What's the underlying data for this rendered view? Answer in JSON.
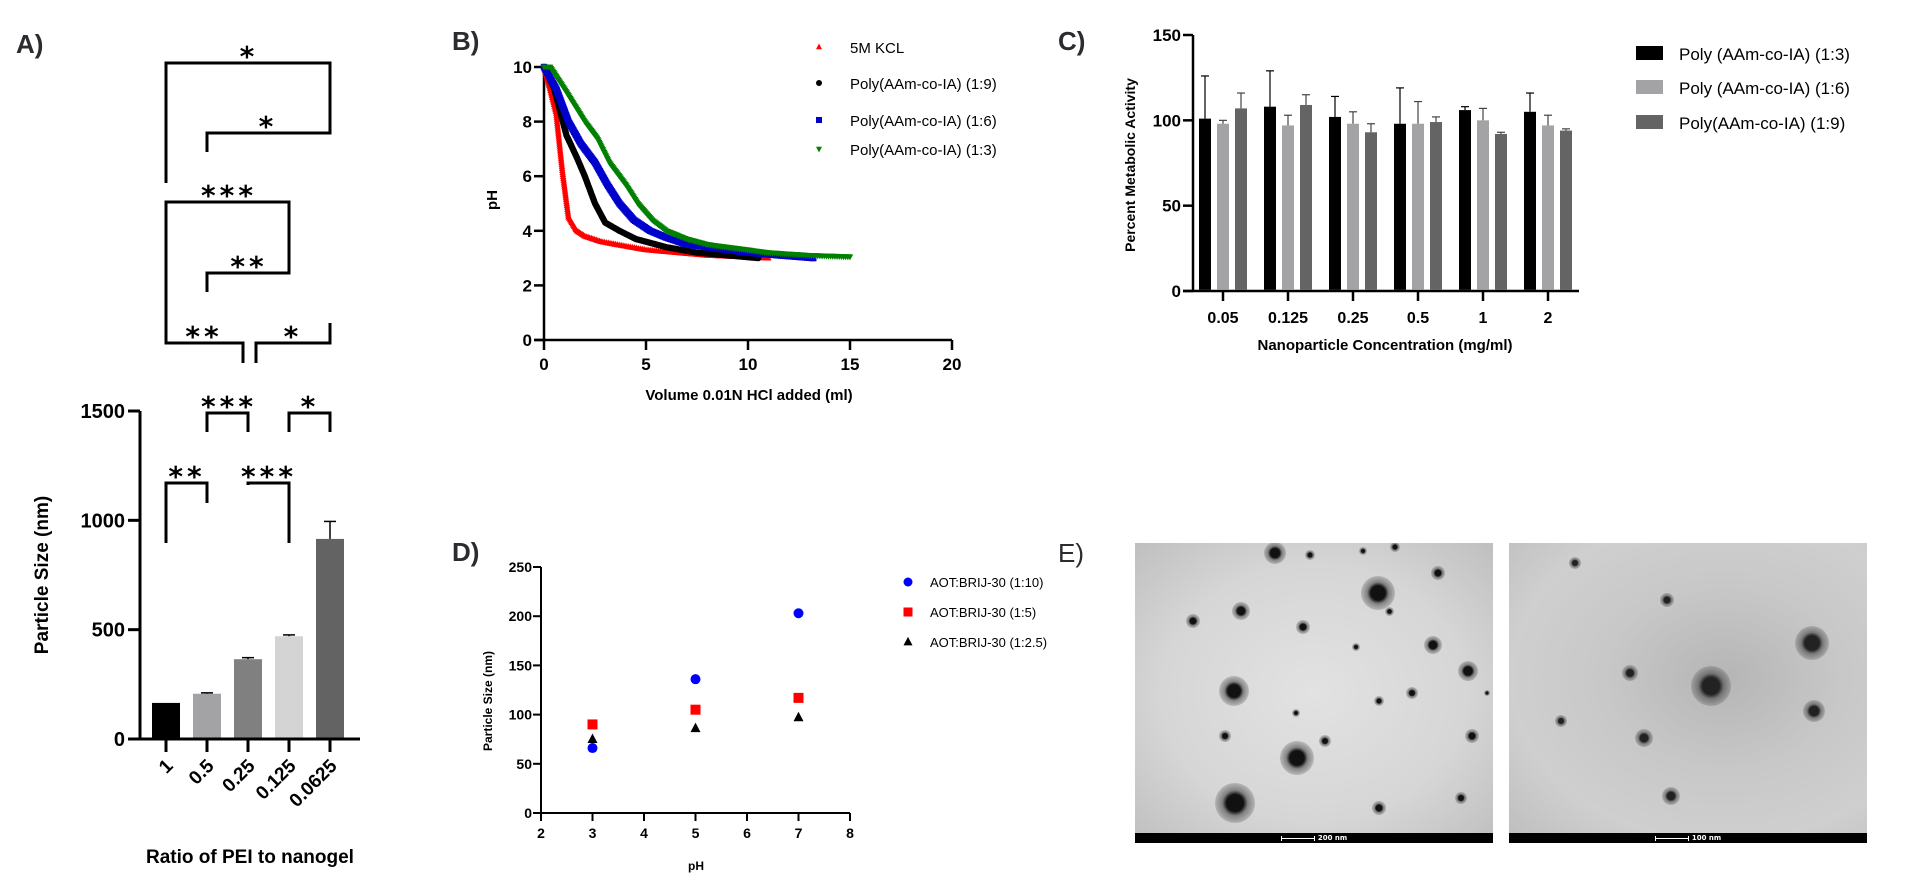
{
  "panels": {
    "A": "A)",
    "B": "B)",
    "C": "C)",
    "D": "D)",
    "E": "E)"
  },
  "chart_data": [
    {
      "id": "A",
      "type": "bar",
      "title": "",
      "xlabel": "Ratio of PEI to nanogel",
      "ylabel": "Particle Size (nm)",
      "ylim": [
        0,
        1500
      ],
      "yticks": [
        "0",
        "500",
        "1000",
        "1500"
      ],
      "categories": [
        "1",
        "0.5",
        "0.25",
        "0.125",
        "0.0625"
      ],
      "values": [
        165,
        207,
        365,
        470,
        915
      ],
      "errors": [
        0,
        4,
        7,
        6,
        80
      ],
      "colors": [
        "#000000",
        "#a3a3a6",
        "#808080",
        "#d4d4d4",
        "#636363"
      ],
      "significance": [
        {
          "from": 0,
          "to": 4,
          "label": "*"
        },
        {
          "from": 1,
          "to": 4,
          "label": "*"
        },
        {
          "from": 0,
          "to": 3,
          "label": "***"
        },
        {
          "from": 1,
          "to": 3,
          "label": "**"
        },
        {
          "from": 0,
          "to": 2,
          "label": "**"
        },
        {
          "from": 2,
          "to": 4,
          "label": "*"
        },
        {
          "from": 1,
          "to": 2,
          "label": "***"
        },
        {
          "from": 3,
          "to": 4,
          "label": "*"
        },
        {
          "from": 0,
          "to": 1,
          "label": "**"
        },
        {
          "from": 2,
          "to": 3,
          "label": "***"
        }
      ]
    },
    {
      "id": "B",
      "type": "scatter",
      "title": "",
      "xlabel": "Volume 0.01N HCl added (ml)",
      "ylabel": "pH",
      "xlim": [
        0,
        20
      ],
      "ylim": [
        0,
        10
      ],
      "xticks": [
        "0",
        "5",
        "10",
        "15",
        "20"
      ],
      "yticks": [
        "0",
        "2",
        "4",
        "6",
        "8",
        "10"
      ],
      "legend_position": "top-right",
      "series": [
        {
          "name": "5M KCL",
          "color": "#ff0000",
          "marker": "triangle-up",
          "x": [
            0,
            0.3,
            0.6,
            0.9,
            1.2,
            1.6,
            2.0,
            2.8,
            3.5,
            5.0,
            6.5,
            8.0,
            9.5,
            11.0
          ],
          "y": [
            10,
            9.2,
            8.3,
            6.2,
            4.5,
            4.0,
            3.8,
            3.6,
            3.5,
            3.3,
            3.2,
            3.1,
            3.05,
            3.0
          ]
        },
        {
          "name": "Poly(AAm-co-IA) (1:9)",
          "color": "#000000",
          "marker": "circle",
          "x": [
            0,
            0.5,
            1.1,
            1.6,
            2.0,
            2.5,
            3.0,
            3.7,
            4.5,
            6.0,
            7.5,
            9.0,
            10.5
          ],
          "y": [
            10,
            9.2,
            7.5,
            6.7,
            6.0,
            5.0,
            4.3,
            4.0,
            3.7,
            3.4,
            3.2,
            3.1,
            3.0
          ]
        },
        {
          "name": "Poly(AAm-co-IA) (1:6)",
          "color": "#0000cc",
          "marker": "square",
          "x": [
            0,
            0.6,
            1.2,
            1.8,
            2.5,
            3.1,
            3.7,
            4.4,
            5.2,
            6.0,
            7.0,
            8.5,
            10.0,
            11.5,
            13.2
          ],
          "y": [
            10,
            9.2,
            8.0,
            7.2,
            6.5,
            5.7,
            5.0,
            4.4,
            4.0,
            3.75,
            3.5,
            3.35,
            3.2,
            3.1,
            3.0
          ]
        },
        {
          "name": "Poly(AAm-co-IA) (1:3)",
          "color": "#008000",
          "marker": "triangle-down",
          "x": [
            0,
            0.3,
            1.0,
            2.0,
            2.6,
            3.2,
            4.0,
            4.6,
            5.3,
            6.0,
            7.0,
            8.0,
            9.5,
            11.0,
            13.0,
            15.0
          ],
          "y": [
            10,
            10,
            9.2,
            8.0,
            7.4,
            6.5,
            5.7,
            5.0,
            4.4,
            4.0,
            3.7,
            3.5,
            3.35,
            3.2,
            3.1,
            3.05
          ]
        }
      ]
    },
    {
      "id": "C",
      "type": "bar",
      "title": "",
      "xlabel": "Nanoparticle Concentration (mg/ml)",
      "ylabel": "Percent Metabolic Activity",
      "ylim": [
        0,
        150
      ],
      "yticks": [
        "0",
        "50",
        "100",
        "150"
      ],
      "categories": [
        "0.05",
        "0.125",
        "0.25",
        "0.5",
        "1",
        "2"
      ],
      "legend_position": "right",
      "series": [
        {
          "name": "Poly (AAm-co-IA) (1:3)",
          "color": "#000000",
          "values": [
            101,
            108,
            102,
            98,
            106,
            105
          ],
          "errors": [
            25,
            21,
            12,
            21,
            2,
            11
          ]
        },
        {
          "name": "Poly (AAm-co-IA) (1:6)",
          "color": "#a3a3a6",
          "values": [
            98,
            97,
            98,
            98,
            100,
            97
          ],
          "errors": [
            2,
            6,
            7,
            13,
            7,
            6
          ]
        },
        {
          "name": "Poly(AAm-co-IA) (1:9)",
          "color": "#646464",
          "values": [
            107,
            109,
            93,
            99,
            92,
            94
          ],
          "errors": [
            9,
            6,
            5,
            3,
            1,
            1
          ]
        }
      ]
    },
    {
      "id": "D",
      "type": "scatter",
      "title": "",
      "xlabel": "pH",
      "ylabel": "Particle Size (nm)",
      "xlim": [
        2,
        8
      ],
      "ylim": [
        0,
        250
      ],
      "xticks": [
        "2",
        "3",
        "4",
        "5",
        "6",
        "7",
        "8"
      ],
      "yticks": [
        "0",
        "50",
        "100",
        "150",
        "200",
        "250"
      ],
      "legend_position": "right",
      "series": [
        {
          "name": "AOT:BRIJ-30 (1:10)",
          "color": "#0000ff",
          "marker": "circle",
          "x": [
            3,
            5,
            7
          ],
          "y": [
            66,
            136,
            203
          ]
        },
        {
          "name": "AOT:BRIJ-30 (1:5)",
          "color": "#ff0000",
          "marker": "square",
          "x": [
            3,
            5,
            7
          ],
          "y": [
            90,
            105,
            117
          ]
        },
        {
          "name": "AOT:BRIJ-30 (1:2.5)",
          "color": "#000000",
          "marker": "triangle-up",
          "x": [
            3,
            5,
            7
          ],
          "y": [
            75,
            86,
            97
          ]
        }
      ]
    }
  ],
  "tem_images": [
    {
      "name": "tem-image-200nm",
      "scale_label": "200 nm"
    },
    {
      "name": "tem-image-100nm",
      "scale_label": "100 nm"
    }
  ]
}
